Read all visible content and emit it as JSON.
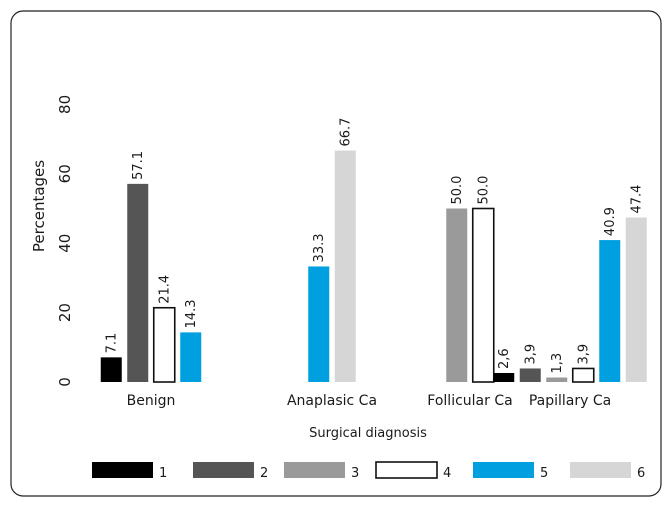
{
  "chart_data": {
    "type": "bar",
    "ylabel": "Percentages",
    "xlabel": "Surgical diagnosis",
    "ylim": [
      0,
      80
    ],
    "yticks": [
      "0",
      "20",
      "40",
      "60",
      "80"
    ],
    "categories": [
      "Benign",
      "Anaplasic Ca",
      "Follicular Ca",
      "Papillary Ca"
    ],
    "series": [
      {
        "name": "1",
        "color": "#000000",
        "outline": false,
        "values": [
          7.1,
          null,
          null,
          2.6
        ],
        "labels": [
          "7.1",
          "",
          "",
          "2,6"
        ]
      },
      {
        "name": "2",
        "color": "#555555",
        "outline": false,
        "values": [
          57.1,
          null,
          null,
          3.9
        ],
        "labels": [
          "57.1",
          "",
          "",
          "3,9"
        ]
      },
      {
        "name": "3",
        "color": "#9a9a9a",
        "outline": false,
        "values": [
          null,
          null,
          50.0,
          1.3
        ],
        "labels": [
          "",
          "",
          "50.0",
          "1,3"
        ]
      },
      {
        "name": "4",
        "color": "#ffffff",
        "outline": true,
        "values": [
          21.4,
          null,
          50.0,
          3.9
        ],
        "labels": [
          "21.4",
          "",
          "50.0",
          "3,9"
        ]
      },
      {
        "name": "5",
        "color": "#00a0e0",
        "outline": false,
        "values": [
          14.3,
          33.3,
          null,
          40.9
        ],
        "labels": [
          "14.3",
          "33.3",
          "",
          "40.9"
        ]
      },
      {
        "name": "6",
        "color": "#d6d6d6",
        "outline": false,
        "values": [
          null,
          66.7,
          null,
          47.4
        ],
        "labels": [
          "",
          "66.7",
          "",
          "47.4"
        ]
      }
    ],
    "grid": false,
    "legend": "bottom"
  }
}
